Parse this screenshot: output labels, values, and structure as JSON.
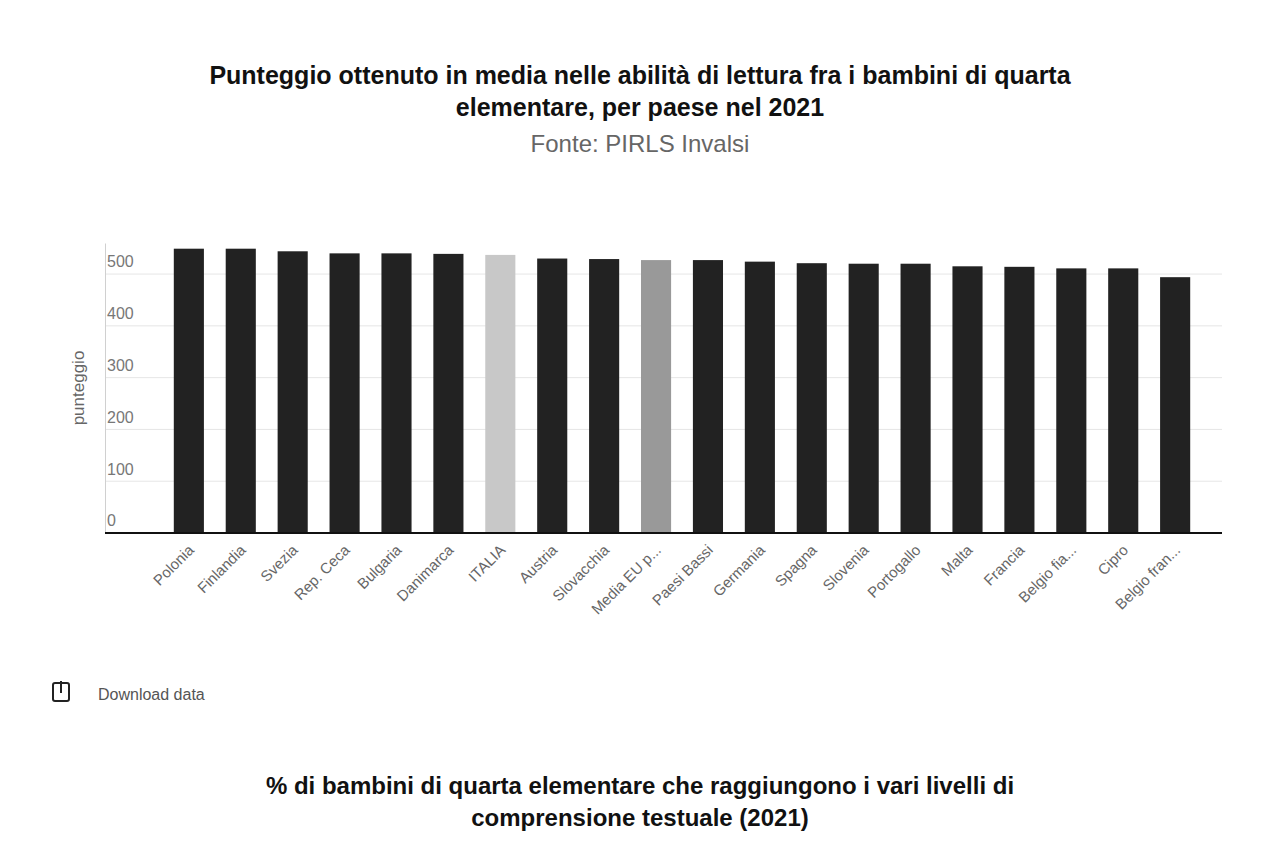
{
  "chart_data": {
    "type": "bar",
    "title": [
      "Punteggio ottenuto in media nelle abilità di lettura fra i bambini di quarta",
      "elementare, per paese nel 2021"
    ],
    "subtitle": "Fonte: PIRLS Invalsi",
    "y_label": "punteggio",
    "categories": [
      "Polonia",
      "Finlandia",
      "Svezia",
      "Rep. Ceca",
      "Bulgaria",
      "Danimarca",
      "ITALIA",
      "Austria",
      "Slovacchia",
      "Media EU p...",
      "Paesi Bassi",
      "Germania",
      "Spagna",
      "Slovenia",
      "Portogallo",
      "Malta",
      "Francia",
      "Belgio fia...",
      "Cipro",
      "Belgio fran..."
    ],
    "values": [
      549,
      549,
      544,
      540,
      540,
      539,
      537,
      530,
      529,
      527,
      527,
      524,
      521,
      520,
      520,
      515,
      514,
      511,
      511,
      494
    ],
    "colors": [
      "#222222",
      "#222222",
      "#222222",
      "#222222",
      "#222222",
      "#222222",
      "#c8c8c8",
      "#222222",
      "#222222",
      "#999999",
      "#222222",
      "#222222",
      "#222222",
      "#222222",
      "#222222",
      "#222222",
      "#222222",
      "#222222",
      "#222222",
      "#222222"
    ],
    "ylim": [
      0,
      560
    ],
    "yticks": [
      0,
      100,
      200,
      300,
      400,
      500
    ],
    "grid": true
  },
  "page": {
    "download_label": "Download data",
    "next_chart_title": [
      "% di bambini di quarta elementare che raggiungono i vari livelli di",
      "comprensione testuale (2021)"
    ]
  }
}
